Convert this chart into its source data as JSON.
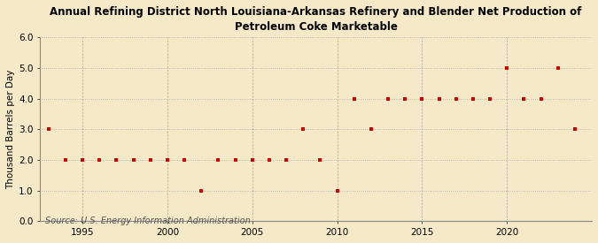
{
  "title": "Annual Refining District North Louisiana-Arkansas Refinery and Blender Net Production of\nPetroleum Coke Marketable",
  "ylabel": "Thousand Barrels per Day",
  "source": "Source: U.S. Energy Information Administration",
  "background_color": "#f5e9c8",
  "plot_background_color": "#f5e9c8",
  "ylim": [
    0.0,
    6.0
  ],
  "yticks": [
    0.0,
    1.0,
    2.0,
    3.0,
    4.0,
    5.0,
    6.0
  ],
  "xlim": [
    1992.5,
    2025
  ],
  "xticks": [
    1995,
    2000,
    2005,
    2010,
    2015,
    2020
  ],
  "years": [
    1993,
    1994,
    1995,
    1996,
    1997,
    1998,
    1999,
    2000,
    2001,
    2002,
    2003,
    2004,
    2005,
    2006,
    2007,
    2008,
    2009,
    2010,
    2011,
    2012,
    2013,
    2014,
    2015,
    2016,
    2017,
    2018,
    2019,
    2020,
    2021,
    2022,
    2023,
    2024
  ],
  "values": [
    3.0,
    2.0,
    2.0,
    2.0,
    2.0,
    2.0,
    2.0,
    2.0,
    2.0,
    1.0,
    2.0,
    2.0,
    2.0,
    2.0,
    2.0,
    3.0,
    2.0,
    1.0,
    4.0,
    3.0,
    4.0,
    4.0,
    4.0,
    4.0,
    4.0,
    4.0,
    4.0,
    5.0,
    4.0,
    4.0,
    5.0,
    3.0
  ],
  "marker_color": "#cc0000",
  "marker": "s",
  "marker_size": 3.5,
  "title_fontsize": 8.5,
  "axis_fontsize": 7.5,
  "tick_fontsize": 7.5,
  "source_fontsize": 7.0
}
